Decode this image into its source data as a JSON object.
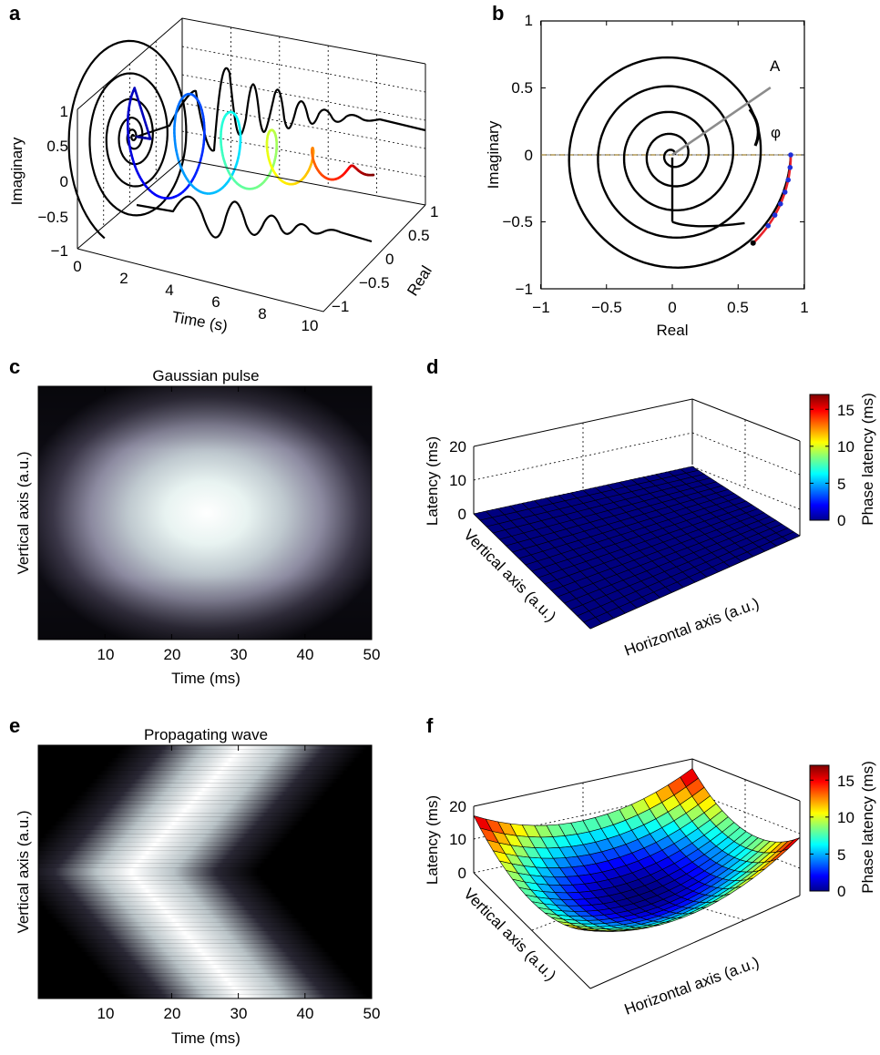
{
  "panels": {
    "a": "a",
    "b": "b",
    "c": "c",
    "d": "d",
    "e": "e",
    "f": "f"
  },
  "chart_data": [
    {
      "panel": "a",
      "type": "line",
      "view": "3d",
      "title": "",
      "xlabel": "Time (s)",
      "ylabel": "Real",
      "zlabel": "Imaginary",
      "x_ticks": [
        "0",
        "2",
        "4",
        "6",
        "8",
        "10"
      ],
      "y_ticks": [
        "−1",
        "−0.5",
        "0",
        "0.5",
        "1"
      ],
      "z_ticks": [
        "−1",
        "−0.5",
        "0",
        "0.5",
        "1"
      ],
      "xlim": [
        0,
        10
      ],
      "ylim": [
        -1,
        1
      ],
      "zlim": [
        -1,
        1
      ],
      "grid": true,
      "colormap": "jet",
      "series": [
        {
          "role": "analytic signal (time-coloured)",
          "x": [
            0,
            2,
            4,
            6,
            8,
            10
          ]
        },
        {
          "role": "projection on time-imaginary plane",
          "color": "#000000"
        },
        {
          "role": "projection on time-real plane",
          "color": "#000000"
        },
        {
          "role": "projection on real-imaginary plane",
          "color": "#000000"
        }
      ]
    },
    {
      "panel": "b",
      "type": "line",
      "title": "",
      "xlabel": "Real",
      "ylabel": "Imaginary",
      "x_ticks": [
        "−1",
        "−0.5",
        "0",
        "0.5",
        "1"
      ],
      "y_ticks": [
        "−1",
        "−0.5",
        "0",
        "0.5",
        "1"
      ],
      "xlim": [
        -1,
        1
      ],
      "ylim": [
        -1,
        1
      ],
      "annotations": [
        "A",
        "φ"
      ],
      "amplitude_A": 0.9,
      "phase_deg": 34,
      "dashed_reference_y": 0,
      "highlight_arc_deg": [
        -47,
        0
      ],
      "colors": {
        "spiral": "#000000",
        "vector": "#8c8c8c",
        "arc": "#e8232b",
        "dots": "#1f2fd8"
      }
    },
    {
      "panel": "c",
      "type": "heatmap",
      "title": "Gaussian pulse",
      "xlabel": "Time (ms)",
      "ylabel": "Vertical axis (a.u.)",
      "x_ticks": [
        "10",
        "20",
        "30",
        "40",
        "50"
      ],
      "xlim": [
        0,
        50
      ],
      "peak_time_ms": 25,
      "colormap": "bone"
    },
    {
      "panel": "d",
      "type": "surface",
      "title": "",
      "xlabel": "Horizontal axis (a.u.)",
      "ylabel": "Vertical axis (a.u.)",
      "zlabel": "Latency (ms)",
      "z_ticks": [
        "0",
        "10",
        "20"
      ],
      "zlim": [
        0,
        20
      ],
      "latency_ms": 0,
      "colorbar": {
        "label": "Phase latency (ms)",
        "ticks": [
          "0",
          "5",
          "10",
          "15"
        ],
        "range": [
          0,
          17
        ]
      }
    },
    {
      "panel": "e",
      "type": "heatmap",
      "title": "Propagating wave",
      "xlabel": "Time (ms)",
      "ylabel": "Vertical axis (a.u.)",
      "x_ticks": [
        "10",
        "20",
        "30",
        "40",
        "50"
      ],
      "xlim": [
        0,
        50
      ],
      "wave_centre_time_ms": 23,
      "wave_edge_time_ms": 40,
      "colormap": "bone"
    },
    {
      "panel": "f",
      "type": "surface",
      "title": "",
      "xlabel": "Horizontal axis (a.u.)",
      "ylabel": "Vertical axis (a.u.)",
      "zlabel": "Latency (ms)",
      "z_ticks": [
        "0",
        "10",
        "20"
      ],
      "zlim": [
        0,
        20
      ],
      "latency_centre_ms": 0,
      "latency_corner_ms": 17,
      "colorbar": {
        "label": "Phase latency (ms)",
        "ticks": [
          "0",
          "5",
          "10",
          "15"
        ],
        "range": [
          0,
          17
        ]
      }
    }
  ]
}
